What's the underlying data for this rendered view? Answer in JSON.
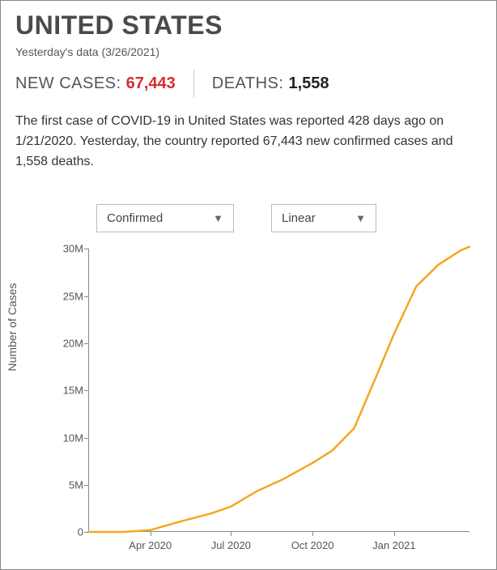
{
  "header": {
    "title": "UNITED STATES",
    "subtitle": "Yesterday's data (3/26/2021)"
  },
  "stats": {
    "new_cases_label": "NEW CASES:",
    "new_cases_value": "67,443",
    "deaths_label": "DEATHS:",
    "deaths_value": "1,558"
  },
  "description": "The first case of COVID-19 in United States was reported 428 days ago on 1/21/2020. Yesterday, the country reported 67,443 new confirmed cases and 1,558 deaths.",
  "controls": {
    "metric_selected": "Confirmed",
    "scale_selected": "Linear"
  },
  "chart": {
    "type": "line",
    "ylabel": "Number of Cases",
    "line_color": "#f5a623",
    "line_width": 2.5,
    "background_color": "#ffffff",
    "axis_color": "#888888",
    "text_color": "#555555",
    "label_fontsize": 13,
    "ylabel_fontsize": 14,
    "ylim": [
      0,
      30000000
    ],
    "yticks": [
      {
        "v": 0,
        "label": "0"
      },
      {
        "v": 5000000,
        "label": "5M"
      },
      {
        "v": 10000000,
        "label": "10M"
      },
      {
        "v": 15000000,
        "label": "15M"
      },
      {
        "v": 20000000,
        "label": "20M"
      },
      {
        "v": 25000000,
        "label": "25M"
      },
      {
        "v": 30000000,
        "label": "30M"
      }
    ],
    "x_range_days": 430,
    "xticks": [
      {
        "day": 70,
        "label": "Apr 2020"
      },
      {
        "day": 161,
        "label": "Jul 2020"
      },
      {
        "day": 253,
        "label": "Oct 2020"
      },
      {
        "day": 345,
        "label": "Jan 2021"
      }
    ],
    "series": [
      {
        "day": 0,
        "value": 1
      },
      {
        "day": 40,
        "value": 50
      },
      {
        "day": 70,
        "value": 200000
      },
      {
        "day": 100,
        "value": 1000000
      },
      {
        "day": 140,
        "value": 2000000
      },
      {
        "day": 161,
        "value": 2700000
      },
      {
        "day": 190,
        "value": 4300000
      },
      {
        "day": 220,
        "value": 5600000
      },
      {
        "day": 253,
        "value": 7300000
      },
      {
        "day": 275,
        "value": 8600000
      },
      {
        "day": 300,
        "value": 11000000
      },
      {
        "day": 325,
        "value": 16500000
      },
      {
        "day": 345,
        "value": 21000000
      },
      {
        "day": 370,
        "value": 26000000
      },
      {
        "day": 395,
        "value": 28300000
      },
      {
        "day": 420,
        "value": 29800000
      },
      {
        "day": 430,
        "value": 30200000
      }
    ]
  }
}
